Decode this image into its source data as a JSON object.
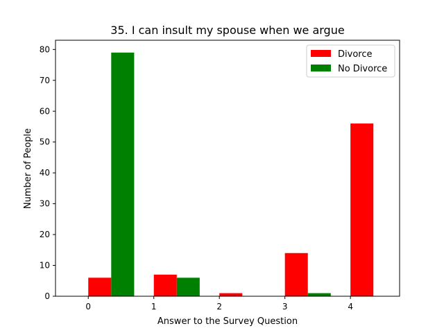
{
  "chart_data": {
    "type": "bar",
    "title": "35. I can insult my spouse when we argue",
    "xlabel": "Answer to the Survey Question",
    "ylabel": "Number of People",
    "categories": [
      0,
      1,
      2,
      3,
      4
    ],
    "xlim": [
      -0.5,
      4.75
    ],
    "ylim": [
      0,
      83
    ],
    "yticks": [
      0,
      10,
      20,
      30,
      40,
      50,
      60,
      70,
      80
    ],
    "bar_width": 0.35,
    "series": [
      {
        "name": "Divorce",
        "color": "#ff0000",
        "values": [
          6,
          7,
          1,
          14,
          56
        ]
      },
      {
        "name": "No Divorce",
        "color": "#008000",
        "values": [
          79,
          6,
          0,
          1,
          0
        ]
      }
    ],
    "legend": "top-right",
    "grid": false
  }
}
